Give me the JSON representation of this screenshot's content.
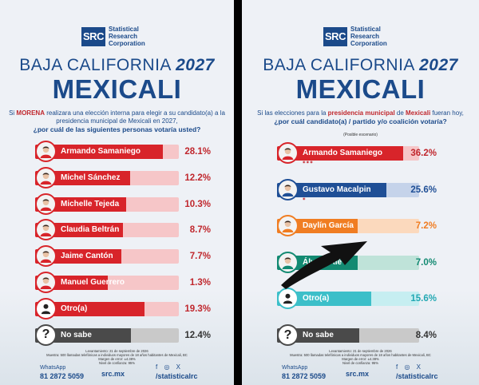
{
  "brand": {
    "logo_text": "SRC",
    "name_line1": "Statistical",
    "name_line2": "Research",
    "name_line3": "Corporation"
  },
  "colors": {
    "navy": "#1b4a8a",
    "red": "#c0272d"
  },
  "left": {
    "region": "BAJA CALIFORNIA",
    "year": "2027",
    "city": "MEXICALI",
    "question_pre": "Si ",
    "question_party": "MORENA",
    "question_post": " realizara una elección interna para elegir a su candidato(a) a la presidencia municipal de Mexicali en 2027,",
    "question_line2": "¿por cuál de las siguientes personas votaría usted?",
    "footer": {
      "line1": "Levantamiento: 21 de septiembre de 2026",
      "line2": "Muestra: 500 llamadas telefónicas a individuos mayores de 18 años habitantes de Mexicali, BC",
      "line3": "Margen de error: ±4.38%",
      "line4": "Nivel de confianza: 95%",
      "whatsapp": "WhatsApp",
      "phone": "81 2872 5059",
      "site": "src.mx",
      "social_icons": "f ◎ X",
      "handle": "/statisticalrc"
    }
  },
  "right": {
    "region": "BAJA CALIFORNIA",
    "year": "2027",
    "city": "MEXICALI",
    "question_pre": "Si las elecciones para la ",
    "question_hl": "presidencia municipal",
    "question_mid": " de ",
    "question_hl2": "Mexicali",
    "question_post": " fueran hoy,",
    "question_line2": "¿por cuál candidato(a) / partido y/o coalición votaría?",
    "note": "(Posible escenario)",
    "footer": {
      "line1": "Levantamiento: 21 de septiembre de 2026",
      "line2": "Muestra: 500 llamadas telefónicas a individuos mayores de 18 años habitantes de Mexicali, BC",
      "line3": "Margen de error: ±4.38%",
      "line4": "Nivel de confianza: 95%",
      "whatsapp": "WhatsApp",
      "phone": "81 2872 5059",
      "site": "src.mx",
      "social_icons": "f ◎ X",
      "handle": "/statisticalrc"
    }
  },
  "chart_data": [
    {
      "type": "bar",
      "categories": [
        "Armando Samaniego",
        "Michel Sánchez",
        "Michelle Tejeda",
        "Claudia Beltrán",
        "Jaime Cantón",
        "Manuel Guerrero",
        "Otro(a)",
        "No sabe"
      ],
      "values": [
        28.1,
        12.2,
        10.3,
        8.7,
        7.7,
        1.3,
        19.3,
        12.4
      ],
      "labels": [
        "28.1%",
        "12.2%",
        "10.3%",
        "8.7%",
        "7.7%",
        "1.3%",
        "19.3%",
        "12.4%"
      ],
      "colors": [
        "#d8242a",
        "#d8242a",
        "#d8242a",
        "#d8242a",
        "#d8242a",
        "#d8242a",
        "#d8242a",
        "#4a4a4a"
      ],
      "tracks": [
        "#f6c6c8",
        "#f6c6c8",
        "#f6c6c8",
        "#f6c6c8",
        "#f6c6c8",
        "#f6c6c8",
        "#f6c6c8",
        "#c9c9c9"
      ],
      "pct_colors": [
        "#c0272d",
        "#c0272d",
        "#c0272d",
        "#c0272d",
        "#c0272d",
        "#c0272d",
        "#c0272d",
        "#333333"
      ],
      "icons": [
        "photo",
        "photo",
        "photo",
        "photo",
        "photo",
        "photo",
        "person",
        "question"
      ],
      "parties": [
        "",
        "",
        "",
        "",
        "",
        "",
        "",
        ""
      ]
    },
    {
      "type": "bar",
      "categories": [
        "Armando Samaniego",
        "Gustavo Macalpin",
        "Daylín García",
        "Álvaro Alé",
        "Otro(a)",
        "No sabe"
      ],
      "values": [
        36.2,
        25.6,
        7.2,
        7.0,
        15.6,
        8.4
      ],
      "labels": [
        "36.2%",
        "25.6%",
        "7.2%",
        "7.0%",
        "15.6%",
        "8.4%"
      ],
      "colors": [
        "#d8242a",
        "#1f4f96",
        "#f07d22",
        "#138a72",
        "#3cbfc9",
        "#4a4a4a"
      ],
      "tracks": [
        "#f6c6c8",
        "#c5d3ea",
        "#fbd9bd",
        "#bfe3d9",
        "#c6eef1",
        "#c9c9c9"
      ],
      "pct_colors": [
        "#c0272d",
        "#1f4f96",
        "#f07d22",
        "#138a72",
        "#22a8b3",
        "#333333"
      ],
      "icons": [
        "photo",
        "photo",
        "photo",
        "photo",
        "person",
        "question"
      ],
      "parties": [
        "◉ ◉ ◉",
        "◉",
        "",
        "◉",
        "",
        ""
      ]
    }
  ]
}
